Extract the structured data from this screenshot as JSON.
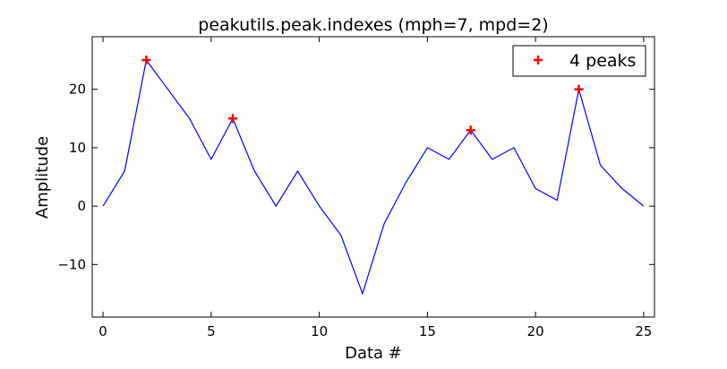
{
  "chart_data": {
    "type": "line",
    "title": "peakutils.peak.indexes (mph=7, mpd=2)",
    "xlabel": "Data #",
    "ylabel": "Amplitude",
    "xlim": [
      -0.5,
      25.5
    ],
    "ylim": [
      -19,
      29
    ],
    "xticks": [
      0,
      5,
      10,
      15,
      20,
      25
    ],
    "yticks": [
      -10,
      0,
      10,
      20
    ],
    "ytick_labels": [
      "−10",
      "0",
      "10",
      "20"
    ],
    "grid": false,
    "legend_position": "top-right",
    "series": [
      {
        "color": "#0000ff",
        "x": [
          0,
          1,
          2,
          3,
          4,
          5,
          6,
          7,
          8,
          9,
          10,
          11,
          12,
          13,
          14,
          15,
          16,
          17,
          18,
          19,
          20,
          21,
          22,
          23,
          24,
          25
        ],
        "y": [
          0,
          6,
          25,
          20,
          15,
          8,
          15,
          6,
          0,
          6,
          0,
          -5,
          -15,
          -3,
          4,
          10,
          8,
          13,
          8,
          10,
          3,
          1,
          20,
          7,
          3,
          0
        ]
      },
      {
        "name": "4 peaks",
        "color": "#ff0000",
        "marker": "plus",
        "x": [
          2,
          6,
          17,
          22
        ],
        "y": [
          25,
          15,
          13,
          20
        ]
      }
    ]
  }
}
